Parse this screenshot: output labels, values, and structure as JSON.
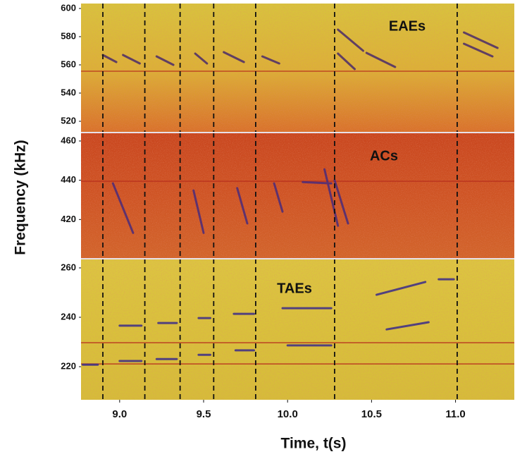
{
  "chart_data": [
    {
      "type": "spectrogram",
      "annotation": "EAEs",
      "ylim": [
        512,
        603.5
      ],
      "yticks": [
        520,
        540,
        560,
        580,
        600
      ],
      "background": [
        "#d8c43c",
        "#dcb236",
        "#d9712a"
      ],
      "vlines": [
        8.9,
        9.15,
        9.36,
        9.56,
        9.81,
        10.28,
        11.01
      ],
      "hlines": [
        555.5
      ],
      "series": [
        {
          "color": "#4a2a6a",
          "x": [
            8.9,
            8.98,
            null,
            9.02,
            9.12,
            null,
            9.22,
            9.32,
            null,
            9.45,
            9.52,
            null,
            9.62,
            9.74,
            null,
            9.85,
            9.95,
            null,
            10.3,
            10.4,
            null,
            10.47,
            10.64,
            null,
            10.3,
            10.45,
            null,
            11.05,
            11.22,
            null,
            11.05,
            11.25
          ],
          "values": [
            567,
            562,
            null,
            567,
            561,
            null,
            566,
            560,
            null,
            568,
            561,
            null,
            569,
            562,
            null,
            566,
            561,
            null,
            568,
            557,
            null,
            568.5,
            558.5,
            null,
            585,
            570,
            null,
            575,
            566,
            null,
            583,
            572
          ]
        }
      ]
    },
    {
      "type": "spectrogram",
      "annotation": "ACs",
      "ylabel": "Frequency (kHz)",
      "ylim": [
        400,
        464.3
      ],
      "yticks": [
        420,
        440,
        460
      ],
      "background": [
        "#c9461e",
        "#cf5424",
        "#d2642a"
      ],
      "vlines": [
        8.9,
        9.15,
        9.36,
        9.56,
        9.81,
        10.28,
        11.01
      ],
      "hlines": [
        439.5
      ],
      "series": [
        {
          "color": "#4a2a7a",
          "x": [
            8.96,
            9.08,
            null,
            9.44,
            9.5,
            null,
            9.92,
            9.97,
            null,
            10.09,
            10.26,
            null,
            10.22,
            10.3,
            null,
            10.28,
            10.36,
            null,
            9.7,
            9.76
          ],
          "values": [
            438.4,
            413.2,
            null,
            434.8,
            413.2,
            null,
            438.4,
            424,
            null,
            439.1,
            438.4,
            null,
            445.6,
            416.8,
            null,
            440,
            418,
            null,
            436,
            418
          ]
        }
      ]
    },
    {
      "type": "spectrogram",
      "annotation": "TAEs",
      "xlabel": "Time, t(s)",
      "ylim": [
        206.6,
        263.7
      ],
      "yticks": [
        220,
        240,
        260
      ],
      "xlim": [
        8.77,
        11.35
      ],
      "xticks": [
        {
          "value": 9,
          "label": "9.0"
        },
        9.5,
        {
          "value": 10,
          "label": "10.0"
        },
        10.5,
        {
          "value": 11,
          "label": "11.0"
        }
      ],
      "background": [
        "#dcc640",
        "#d9c23a",
        "#d6bd38"
      ],
      "vlines": [
        8.9,
        9.15,
        9.36,
        9.56,
        9.81,
        10.28,
        11.01
      ],
      "hlines": [
        229.7,
        221.1
      ],
      "series": [
        {
          "color": "#3a2a8a",
          "x": [
            8.78,
            8.87,
            null,
            9.0,
            9.13,
            null,
            9.22,
            9.34,
            null,
            9.47,
            9.54,
            null,
            9.69,
            9.8,
            null,
            10.0,
            10.26,
            null,
            9.0,
            9.13,
            null,
            9.23,
            9.34,
            null,
            9.47,
            9.54,
            null,
            9.68,
            9.8,
            null,
            9.97,
            10.26,
            null,
            10.53,
            10.82,
            null,
            10.59,
            10.84,
            null,
            10.9,
            10.99
          ],
          "values": [
            220.8,
            220.8,
            null,
            222.3,
            222.3,
            null,
            223.1,
            223.1,
            null,
            224.8,
            224.8,
            null,
            226.6,
            226.6,
            null,
            228.6,
            228.6,
            null,
            236.6,
            236.6,
            null,
            237.7,
            237.7,
            null,
            239.7,
            239.7,
            null,
            241.4,
            241.4,
            null,
            243.7,
            243.7,
            null,
            249.1,
            254.3,
            null,
            235.1,
            238,
            null,
            255.4,
            255.4
          ]
        }
      ]
    }
  ]
}
